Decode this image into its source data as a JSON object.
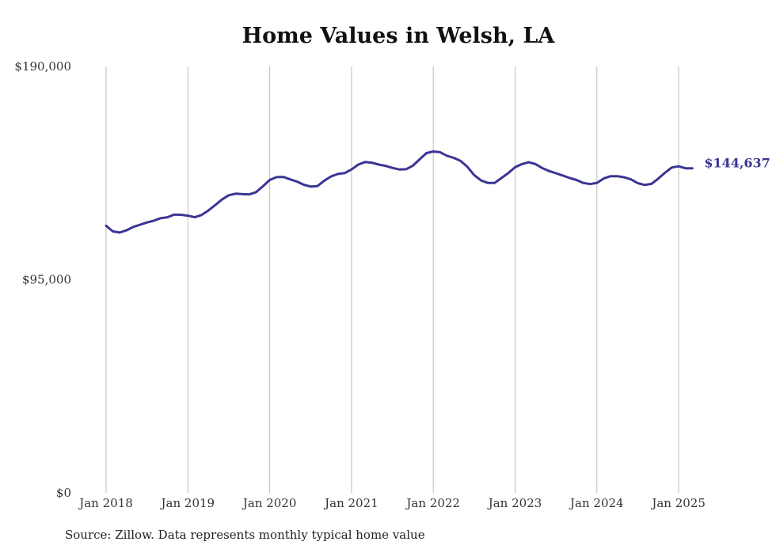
{
  "chart_data": {
    "type": "line",
    "title": "Home Values in Welsh, LA",
    "source": "Source: Zillow. Data represents monthly typical home value",
    "xlabel": "",
    "ylabel": "",
    "ylim": [
      0,
      190000
    ],
    "y_ticks": [
      {
        "value": 0,
        "label": "$0"
      },
      {
        "value": 95000,
        "label": "$95,000"
      },
      {
        "value": 190000,
        "label": "$190,000"
      }
    ],
    "x_ticks": [
      {
        "value": "2018-01",
        "label": "Jan 2018"
      },
      {
        "value": "2019-01",
        "label": "Jan 2019"
      },
      {
        "value": "2020-01",
        "label": "Jan 2020"
      },
      {
        "value": "2021-01",
        "label": "Jan 2021"
      },
      {
        "value": "2022-01",
        "label": "Jan 2022"
      },
      {
        "value": "2023-01",
        "label": "Jan 2023"
      },
      {
        "value": "2024-01",
        "label": "Jan 2024"
      },
      {
        "value": "2025-01",
        "label": "Jan 2025"
      }
    ],
    "grid": "vertical",
    "line_color": "#3b3594",
    "end_label": "$144,637",
    "series": [
      {
        "x": [
          "2018-01",
          "2018-02",
          "2018-03",
          "2018-04",
          "2018-05",
          "2018-06",
          "2018-07",
          "2018-08",
          "2018-09",
          "2018-10",
          "2018-11",
          "2018-12",
          "2019-01",
          "2019-02",
          "2019-03",
          "2019-04",
          "2019-05",
          "2019-06",
          "2019-07",
          "2019-08",
          "2019-09",
          "2019-10",
          "2019-11",
          "2019-12",
          "2020-01",
          "2020-02",
          "2020-03",
          "2020-04",
          "2020-05",
          "2020-06",
          "2020-07",
          "2020-08",
          "2020-09",
          "2020-10",
          "2020-11",
          "2020-12",
          "2021-01",
          "2021-02",
          "2021-03",
          "2021-04",
          "2021-05",
          "2021-06",
          "2021-07",
          "2021-08",
          "2021-09",
          "2021-10",
          "2021-11",
          "2021-12",
          "2022-01",
          "2022-02",
          "2022-03",
          "2022-04",
          "2022-05",
          "2022-06",
          "2022-07",
          "2022-08",
          "2022-09",
          "2022-10",
          "2022-11",
          "2022-12",
          "2023-01",
          "2023-02",
          "2023-03",
          "2023-04",
          "2023-05",
          "2023-06",
          "2023-07",
          "2023-08",
          "2023-09",
          "2023-10",
          "2023-11",
          "2023-12",
          "2024-01",
          "2024-02",
          "2024-03",
          "2024-04",
          "2024-05",
          "2024-06",
          "2024-07",
          "2024-08",
          "2024-09",
          "2024-10",
          "2024-11",
          "2024-12",
          "2025-01",
          "2025-02",
          "2025-03"
        ],
        "values": [
          119000,
          116500,
          116000,
          117000,
          118500,
          119500,
          120500,
          121300,
          122400,
          122800,
          124000,
          123900,
          123500,
          122800,
          123800,
          125800,
          128200,
          130700,
          132600,
          133300,
          133100,
          133000,
          134000,
          136600,
          139400,
          140700,
          140800,
          139700,
          138700,
          137300,
          136500,
          136700,
          139100,
          141000,
          142100,
          142500,
          144100,
          146300,
          147400,
          147100,
          146300,
          145700,
          144800,
          144100,
          144200,
          145800,
          148600,
          151400,
          152100,
          151800,
          150200,
          149300,
          147900,
          145300,
          141600,
          139200,
          138100,
          138100,
          140300,
          142500,
          145100,
          146500,
          147300,
          146500,
          144700,
          143400,
          142400,
          141400,
          140300,
          139400,
          138100,
          137600,
          138100,
          140100,
          141100,
          141100,
          140600,
          139700,
          138000,
          137200,
          137700,
          140000,
          142700,
          145000,
          145500,
          144637,
          144637
        ]
      }
    ]
  }
}
